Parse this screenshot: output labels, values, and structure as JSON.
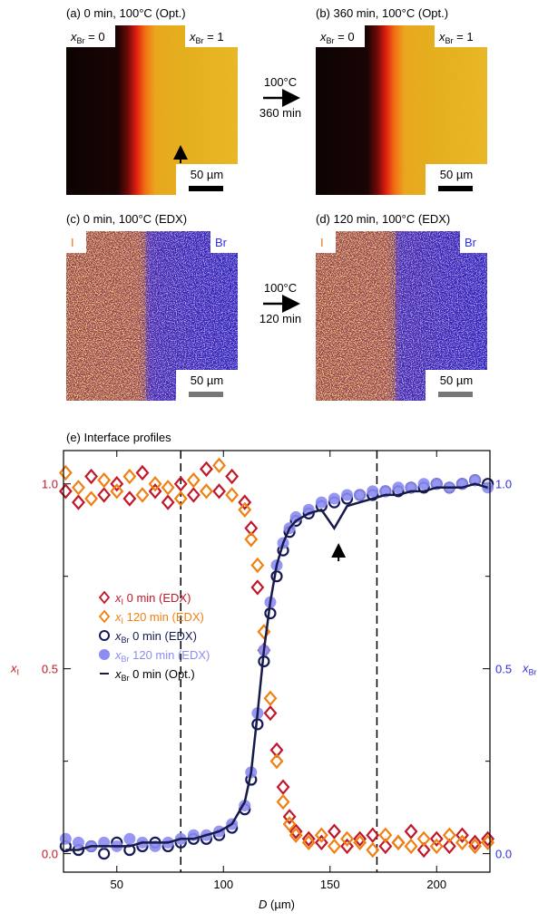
{
  "panels": [
    {
      "title": "(a) 0 min, 100°C (Opt.)",
      "left_label": {
        "symbol": "x",
        "sub": "Br",
        "rest": " = 0"
      },
      "right_label": {
        "symbol": "x",
        "sub": "Br",
        "rest": " = 1"
      },
      "scale_bar": "50 µm"
    },
    {
      "title": "(b) 360 min, 100°C (Opt.)",
      "left_label": {
        "symbol": "x",
        "sub": "Br",
        "rest": " = 0"
      },
      "right_label": {
        "symbol": "x",
        "sub": "Br",
        "rest": " = 1"
      },
      "scale_bar": "50 µm"
    },
    {
      "title": "(c) 0 min, 100°C (EDX)",
      "left_label": {
        "rest": "I"
      },
      "right_label": {
        "rest": "Br"
      },
      "scale_bar": "50 µm"
    },
    {
      "title": "(d) 120 min, 100°C (EDX)",
      "left_label": {
        "rest": "I"
      },
      "right_label": {
        "rest": "Br"
      },
      "scale_bar": "50 µm"
    }
  ],
  "transitions": [
    {
      "temp": "100°C",
      "time": "360 min"
    },
    {
      "temp": "100°C",
      "time": "120 min"
    }
  ],
  "chart_data": {
    "type": "scatter",
    "title": "(e) Interface profiles",
    "xlabel": {
      "symbol": "D",
      "rest": " (µm)"
    },
    "ylabel": {
      "symbol": "x",
      "sub": "I",
      "color": "#c0182a"
    },
    "y2label": {
      "symbol": "x",
      "sub": "Br",
      "color": "#3030e0"
    },
    "xlim": [
      25,
      225
    ],
    "xticks": [
      50,
      100,
      150,
      200
    ],
    "ylim": [
      -0.05,
      1.09
    ],
    "yticks": [
      {
        "value": 0,
        "label": "0.0"
      },
      {
        "value": 0.5,
        "label": "0.5"
      },
      {
        "value": 1,
        "label": "1.0"
      }
    ],
    "y2lim": [
      -0.05,
      1.09
    ],
    "y2ticks": [
      {
        "value": 0,
        "label": "0.0"
      },
      {
        "value": 0.5,
        "label": "0.5"
      },
      {
        "value": 1,
        "label": "1.0"
      }
    ],
    "yminor_ticks": [
      0.25,
      0.75
    ],
    "vlines": [
      80,
      172
    ],
    "annotation_arrow": {
      "x": 154,
      "y": 0.83
    },
    "x": [
      26,
      32,
      38,
      44,
      50,
      56,
      62,
      68,
      74,
      80,
      86,
      92,
      98,
      104,
      110,
      113,
      116,
      119,
      122,
      125,
      128,
      131,
      134,
      140,
      146,
      152,
      158,
      164,
      170,
      176,
      182,
      188,
      194,
      200,
      206,
      212,
      218,
      224
    ],
    "series": [
      {
        "symbol": "x",
        "sub": "I",
        "name": " 0 min (EDX)",
        "marker": "diamond",
        "color": "#c0182a",
        "axis": "y",
        "values": [
          0.98,
          0.95,
          1.02,
          0.97,
          1.0,
          0.96,
          1.03,
          0.98,
          0.95,
          1.0,
          0.97,
          1.04,
          0.98,
          1.02,
          0.95,
          0.88,
          0.72,
          0.55,
          0.38,
          0.28,
          0.18,
          0.1,
          0.06,
          0.04,
          0.03,
          0.06,
          0.02,
          0.04,
          0.05,
          0.02,
          0.03,
          0.06,
          0.01,
          0.04,
          0.02,
          0.05,
          0.03,
          0.04
        ]
      },
      {
        "symbol": "x",
        "sub": "I",
        "name": " 120 min (EDX)",
        "marker": "diamond",
        "color": "#f08010",
        "axis": "y",
        "values": [
          1.03,
          0.99,
          0.96,
          1.01,
          0.98,
          1.02,
          0.97,
          1.0,
          0.99,
          0.96,
          1.01,
          0.98,
          1.05,
          0.97,
          0.93,
          0.85,
          0.78,
          0.6,
          0.42,
          0.25,
          0.14,
          0.08,
          0.05,
          0.03,
          0.05,
          0.02,
          0.04,
          0.03,
          0.01,
          0.05,
          0.03,
          0.02,
          0.04,
          0.02,
          0.05,
          0.03,
          0.02,
          0.03
        ]
      },
      {
        "symbol": "x",
        "sub": "Br",
        "name": " 0 min (EDX)",
        "marker": "circle",
        "color": "#151a55",
        "axis": "y2",
        "values": [
          0.02,
          0.01,
          0.02,
          0.0,
          0.03,
          0.01,
          0.02,
          0.03,
          0.02,
          0.03,
          0.04,
          0.04,
          0.05,
          0.07,
          0.12,
          0.2,
          0.35,
          0.52,
          0.65,
          0.75,
          0.82,
          0.87,
          0.9,
          0.92,
          0.94,
          0.95,
          0.96,
          0.97,
          0.97,
          0.98,
          0.98,
          0.99,
          0.99,
          1.0,
          0.99,
          1.0,
          1.01,
          1.0
        ]
      },
      {
        "symbol": "x",
        "sub": "Br",
        "name": " 120 min (EDX)",
        "marker": "filled-circle",
        "color": "#8c8cf2",
        "axis": "y2",
        "values": [
          0.04,
          0.03,
          0.02,
          0.03,
          0.02,
          0.04,
          0.03,
          0.02,
          0.03,
          0.04,
          0.05,
          0.05,
          0.06,
          0.08,
          0.13,
          0.22,
          0.38,
          0.55,
          0.68,
          0.78,
          0.84,
          0.88,
          0.91,
          0.93,
          0.95,
          0.96,
          0.97,
          0.97,
          0.98,
          0.98,
          0.99,
          0.99,
          1.0,
          1.0,
          0.99,
          1.0,
          1.01,
          0.99
        ]
      },
      {
        "symbol": "x",
        "sub": "Br",
        "name": " 0 min (Opt.)",
        "marker": "line",
        "color": "#151a4a",
        "axis": "y2",
        "values": [
          0.01,
          0.01,
          0.02,
          0.02,
          0.02,
          0.02,
          0.03,
          0.03,
          0.03,
          0.04,
          0.04,
          0.05,
          0.06,
          0.08,
          0.14,
          0.22,
          0.38,
          0.55,
          0.68,
          0.78,
          0.84,
          0.88,
          0.9,
          0.92,
          0.93,
          0.88,
          0.94,
          0.95,
          0.96,
          0.97,
          0.97,
          0.98,
          0.98,
          0.99,
          0.99,
          0.99,
          1.0,
          0.99
        ]
      }
    ]
  }
}
